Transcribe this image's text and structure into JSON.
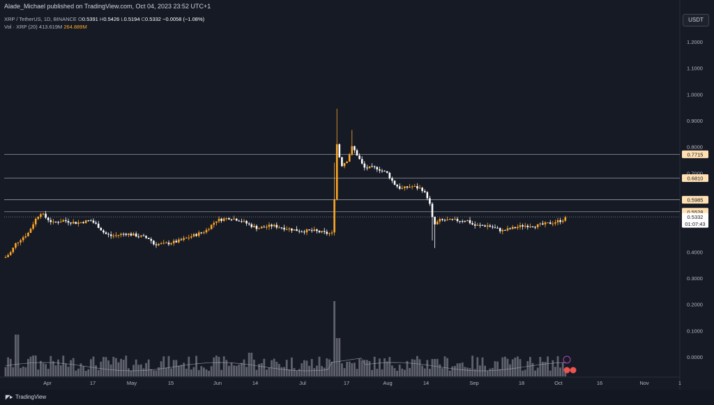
{
  "header": {
    "publisher_line": "Alade_Michael published on TradingView.com, Oct 04, 2023 23:52 UTC+1"
  },
  "legend": {
    "symbol": "XRP / TetherUS, 1D, BINANCE",
    "open_label": "O",
    "open": "0.5391",
    "high_label": "H",
    "high": "0.5426",
    "low_label": "L",
    "low": "0.5194",
    "close_label": "C",
    "close": "0.5332",
    "change": "−0.0058 (−1.08%)",
    "volume_name": "Vol · XRP (20)",
    "volume_value": "413.619M",
    "volume_ma": "264.889M"
  },
  "toolbar": {
    "currency_button": "USDT"
  },
  "footer": {
    "brand": "TradingView"
  },
  "colors": {
    "background": "#161a25",
    "candle_up": "#ffa726",
    "candle_down": "#ffffff",
    "volume_bar": "#787b86",
    "hline": "#9598a1",
    "label_bg": "#ffe0b2"
  },
  "price_labels": [
    {
      "value": "0.7715",
      "highlight": true
    },
    {
      "value": "0.6810",
      "highlight": true
    },
    {
      "value": "0.5985",
      "highlight": true
    },
    {
      "value": "0.5528",
      "highlight": true
    },
    {
      "value": "0.5332",
      "highlight": false
    }
  ],
  "countdown": "01:07:43",
  "chart_data": {
    "type": "candlestick",
    "symbol": "XRP/USDT",
    "interval": "1D",
    "y_axis_ticks": [
      "1.2000",
      "1.1000",
      "1.0000",
      "0.9000",
      "0.8000",
      "0.7000",
      "0.6000",
      "0.5000",
      "0.4000",
      "0.3000",
      "0.2000",
      "0.1000",
      "0.0000"
    ],
    "x_axis_ticks": [
      "Apr",
      "17",
      "May",
      "15",
      "Jun",
      "14",
      "Jul",
      "17",
      "Aug",
      "14",
      "Sep",
      "18",
      "Oct",
      "16",
      "Nov",
      "1"
    ],
    "horizontal_levels": [
      0.7715,
      0.681,
      0.5985,
      0.5528
    ],
    "last_price": 0.5332,
    "ylim": [
      0.0,
      1.2
    ],
    "volume_scale": "log",
    "grid": false
  }
}
